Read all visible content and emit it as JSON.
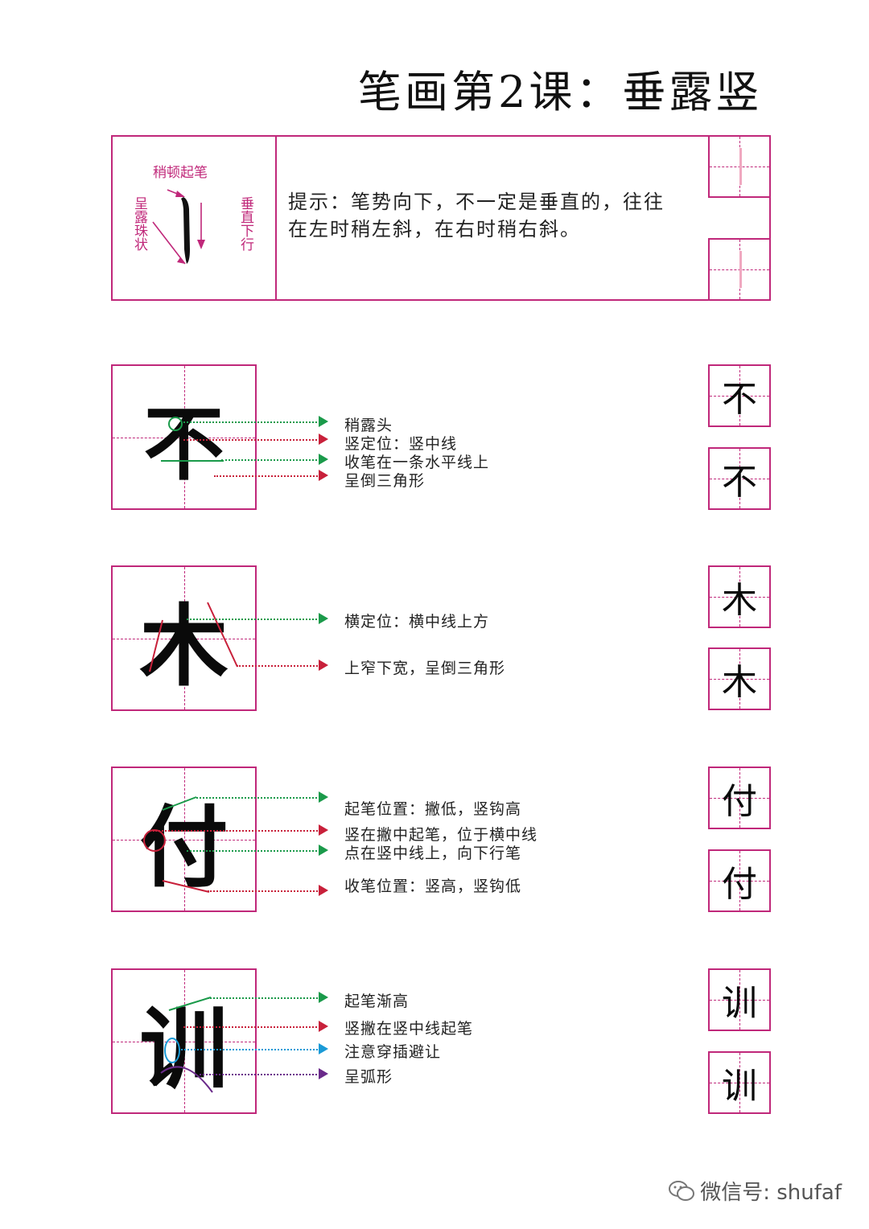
{
  "title": "笔画第2课：垂露竖",
  "intro": {
    "stroke_start_label": "稍顿起笔",
    "dew_label": "呈露珠状",
    "straight_label": "垂直下行",
    "tip_line1": "提示：笔势向下，不一定是垂直的，往往",
    "tip_line2": "在左时稍左斜，在右时稍右斜。"
  },
  "examples": [
    {
      "char": "不",
      "annotations": [
        "稍露头",
        "竖定位：竖中线",
        "收笔在一条水平线上",
        "呈倒三角形"
      ]
    },
    {
      "char": "木",
      "annotations": [
        "横定位：横中线上方",
        "上窄下宽，呈倒三角形"
      ]
    },
    {
      "char": "付",
      "annotations": [
        "起笔位置：撇低，竖钩高",
        "竖在撇中起笔，位于横中线",
        "点在竖中线上，向下行笔",
        "收笔位置：竖高，竖钩低"
      ]
    },
    {
      "char": "训",
      "annotations": [
        "起笔渐高",
        "竖撇在竖中线起笔",
        "注意穿插避让",
        "呈弧形"
      ]
    }
  ],
  "watermark": "微信号: shufaf",
  "colors": {
    "frame": "#c0287a",
    "green": "#1a9a4a",
    "red": "#c8203a",
    "blue": "#1a9ad6",
    "purple": "#6a2a8a"
  }
}
